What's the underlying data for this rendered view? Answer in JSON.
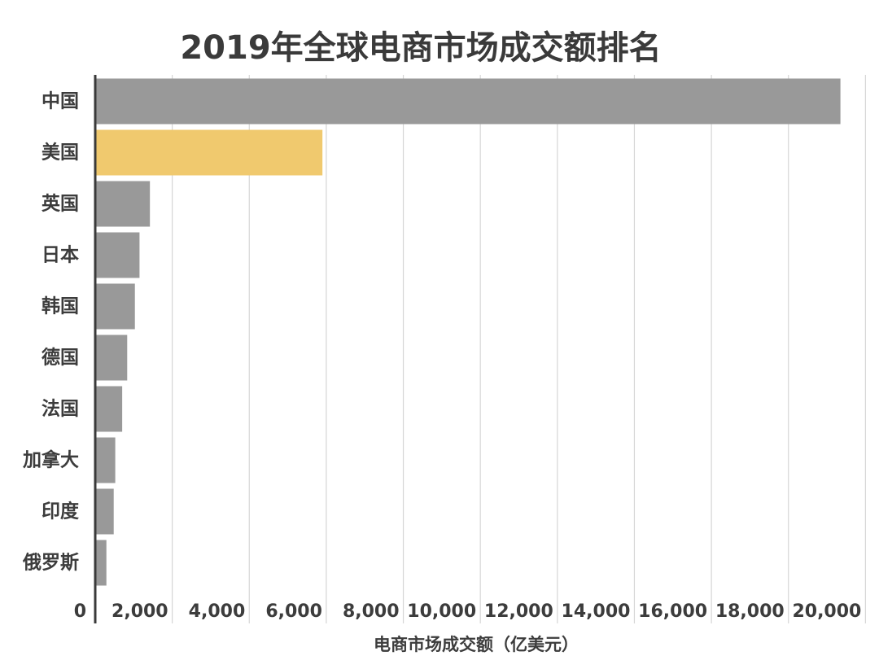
{
  "chart_data": {
    "type": "bar",
    "orientation": "horizontal",
    "title": "2019年全球电商市场成交额排名",
    "xlabel": "电商市场成交额（亿美元）",
    "ylabel": "",
    "categories": [
      "中国",
      "美国",
      "英国",
      "日本",
      "韩国",
      "德国",
      "法国",
      "加拿大",
      "印度",
      "俄罗斯"
    ],
    "values": [
      19350,
      5900,
      1420,
      1150,
      1030,
      830,
      700,
      520,
      480,
      290
    ],
    "highlight_index": 1,
    "colors": {
      "bar": "#999999",
      "highlight": "#f0c96e",
      "axis": "#3a3a3a",
      "grid": "#d6d6d6"
    },
    "xlim": [
      0,
      20000
    ],
    "xticks": [
      0,
      2000,
      4000,
      6000,
      8000,
      10000,
      12000,
      14000,
      16000,
      18000,
      20000
    ],
    "xtick_labels": [
      "0",
      "2,000",
      "4,000",
      "6,000",
      "8,000",
      "10,000",
      "12,000",
      "14,000",
      "16,000",
      "18,000",
      "20,000"
    ],
    "grid": true,
    "legend": "none"
  }
}
